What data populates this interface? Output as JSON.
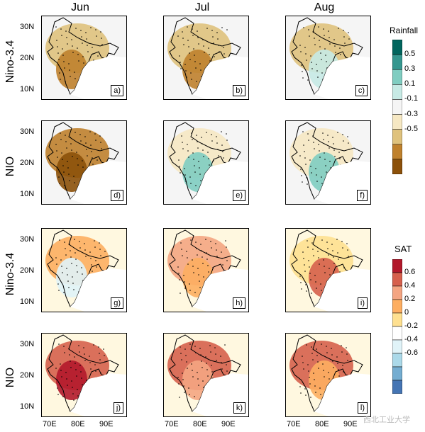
{
  "columns": [
    "Jun",
    "Jul",
    "Aug"
  ],
  "rows": [
    "Nino-3.4",
    "NIO",
    "Nino-3.4",
    "NIO"
  ],
  "panel_labels": [
    "a)",
    "b)",
    "c)",
    "d)",
    "e)",
    "f)",
    "g)",
    "h)",
    "i)",
    "j)",
    "k)",
    "l)"
  ],
  "y_ticks": [
    "30N",
    "20N",
    "10N"
  ],
  "x_ticks": [
    "70E",
    "80E",
    "90E"
  ],
  "rainfall_bar": {
    "title": "Rainfall",
    "values": [
      "0.5",
      "0.3",
      "0.1",
      "-0.1",
      "-0.3",
      "-0.5"
    ],
    "colors": [
      "#01665e",
      "#35978f",
      "#80cdc1",
      "#c7eae5",
      "#f5f5f5",
      "#f6e8c3",
      "#dfc27d",
      "#bf812d",
      "#8c510a"
    ]
  },
  "sat_bar": {
    "title": "SAT",
    "values": [
      "0.6",
      "0.4",
      "0.2",
      "0",
      "-0.2",
      "-0.4",
      "-0.6"
    ],
    "colors": [
      "#b2182b",
      "#d6604d",
      "#f4a582",
      "#fdae61",
      "#fee090",
      "#ffffff",
      "#e0f3f8",
      "#abd9e9",
      "#74add1",
      "#4575b4"
    ]
  },
  "watermark": "西北工业大学"
}
